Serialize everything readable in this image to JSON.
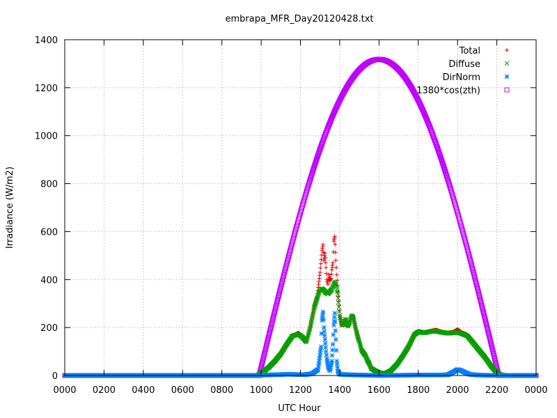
{
  "chart_data": {
    "type": "scatter",
    "title": "embrapa_MFR_Day20120428.txt",
    "xlabel": "UTC Hour",
    "ylabel": "Irradiance (W/m2)",
    "xlim": [
      0,
      24
    ],
    "ylim": [
      0,
      1400
    ],
    "x_ticks": [
      {
        "value": 0,
        "label": "0000"
      },
      {
        "value": 2,
        "label": "0200"
      },
      {
        "value": 4,
        "label": "0400"
      },
      {
        "value": 6,
        "label": "0600"
      },
      {
        "value": 8,
        "label": "0800"
      },
      {
        "value": 10,
        "label": "1000"
      },
      {
        "value": 12,
        "label": "1200"
      },
      {
        "value": 14,
        "label": "1400"
      },
      {
        "value": 16,
        "label": "1600"
      },
      {
        "value": 18,
        "label": "1800"
      },
      {
        "value": 20,
        "label": "2000"
      },
      {
        "value": 22,
        "label": "2200"
      },
      {
        "value": 24,
        "label": "0000"
      }
    ],
    "y_ticks": [
      {
        "value": 0,
        "label": "0"
      },
      {
        "value": 200,
        "label": "200"
      },
      {
        "value": 400,
        "label": "400"
      },
      {
        "value": 600,
        "label": "600"
      },
      {
        "value": 800,
        "label": "800"
      },
      {
        "value": 1000,
        "label": "1000"
      },
      {
        "value": 1200,
        "label": "1200"
      },
      {
        "value": 1400,
        "label": "1400"
      }
    ],
    "grid": true,
    "legend_position": "top-right",
    "series": [
      {
        "name": "Total",
        "marker": "plus",
        "color": "#e00000",
        "points": [
          [
            0,
            0
          ],
          [
            5,
            0
          ],
          [
            9.8,
            0
          ],
          [
            10.1,
            15
          ],
          [
            10.4,
            35
          ],
          [
            10.7,
            60
          ],
          [
            11.0,
            90
          ],
          [
            11.3,
            130
          ],
          [
            11.6,
            165
          ],
          [
            11.9,
            178
          ],
          [
            12.1,
            160
          ],
          [
            12.3,
            140
          ],
          [
            12.5,
            200
          ],
          [
            12.7,
            290
          ],
          [
            12.85,
            330
          ],
          [
            13.0,
            430
          ],
          [
            13.1,
            520
          ],
          [
            13.15,
            545
          ],
          [
            13.2,
            480
          ],
          [
            13.25,
            510
          ],
          [
            13.3,
            450
          ],
          [
            13.35,
            400
          ],
          [
            13.4,
            380
          ],
          [
            13.45,
            420
          ],
          [
            13.5,
            395
          ],
          [
            13.55,
            405
          ],
          [
            13.6,
            440
          ],
          [
            13.65,
            470
          ],
          [
            13.7,
            560
          ],
          [
            13.75,
            580
          ],
          [
            13.8,
            480
          ],
          [
            13.85,
            420
          ],
          [
            13.9,
            350
          ],
          [
            14.0,
            250
          ],
          [
            14.1,
            210
          ],
          [
            14.2,
            215
          ],
          [
            14.3,
            235
          ],
          [
            14.4,
            205
          ],
          [
            14.5,
            220
          ],
          [
            14.6,
            250
          ],
          [
            14.7,
            240
          ],
          [
            14.8,
            200
          ],
          [
            14.9,
            170
          ],
          [
            15.0,
            140
          ],
          [
            15.1,
            110
          ],
          [
            15.2,
            95
          ],
          [
            15.3,
            85
          ],
          [
            15.4,
            65
          ],
          [
            15.5,
            50
          ],
          [
            15.6,
            30
          ],
          [
            15.8,
            20
          ],
          [
            16.0,
            12
          ],
          [
            16.3,
            8
          ],
          [
            16.6,
            20
          ],
          [
            16.9,
            45
          ],
          [
            17.2,
            80
          ],
          [
            17.5,
            120
          ],
          [
            17.8,
            170
          ],
          [
            18.0,
            185
          ],
          [
            18.3,
            180
          ],
          [
            18.6,
            185
          ],
          [
            18.9,
            190
          ],
          [
            19.2,
            182
          ],
          [
            19.5,
            178
          ],
          [
            19.8,
            182
          ],
          [
            20.0,
            192
          ],
          [
            20.2,
            180
          ],
          [
            20.5,
            170
          ],
          [
            20.8,
            140
          ],
          [
            21.1,
            110
          ],
          [
            21.4,
            80
          ],
          [
            21.7,
            45
          ],
          [
            22.0,
            15
          ],
          [
            22.2,
            3
          ],
          [
            22.5,
            0
          ],
          [
            24,
            0
          ]
        ]
      },
      {
        "name": "Diffuse",
        "marker": "cross",
        "color": "#00a000",
        "points": [
          [
            0,
            0
          ],
          [
            5,
            0
          ],
          [
            9.8,
            0
          ],
          [
            10.1,
            15
          ],
          [
            10.4,
            35
          ],
          [
            10.7,
            60
          ],
          [
            11.0,
            90
          ],
          [
            11.3,
            130
          ],
          [
            11.6,
            165
          ],
          [
            11.9,
            172
          ],
          [
            12.1,
            160
          ],
          [
            12.3,
            140
          ],
          [
            12.5,
            200
          ],
          [
            12.7,
            280
          ],
          [
            12.85,
            320
          ],
          [
            13.0,
            360
          ],
          [
            13.1,
            362
          ],
          [
            13.2,
            355
          ],
          [
            13.3,
            345
          ],
          [
            13.4,
            340
          ],
          [
            13.5,
            350
          ],
          [
            13.6,
            360
          ],
          [
            13.7,
            380
          ],
          [
            13.8,
            390
          ],
          [
            13.9,
            340
          ],
          [
            14.0,
            250
          ],
          [
            14.1,
            210
          ],
          [
            14.2,
            215
          ],
          [
            14.3,
            235
          ],
          [
            14.4,
            205
          ],
          [
            14.5,
            220
          ],
          [
            14.6,
            250
          ],
          [
            14.7,
            240
          ],
          [
            14.8,
            200
          ],
          [
            14.9,
            165
          ],
          [
            15.0,
            140
          ],
          [
            15.1,
            108
          ],
          [
            15.2,
            95
          ],
          [
            15.3,
            85
          ],
          [
            15.4,
            65
          ],
          [
            15.5,
            50
          ],
          [
            15.6,
            30
          ],
          [
            15.8,
            20
          ],
          [
            16.0,
            12
          ],
          [
            16.3,
            8
          ],
          [
            16.6,
            20
          ],
          [
            16.9,
            45
          ],
          [
            17.2,
            80
          ],
          [
            17.5,
            120
          ],
          [
            17.8,
            170
          ],
          [
            18.0,
            182
          ],
          [
            18.3,
            178
          ],
          [
            18.6,
            183
          ],
          [
            18.9,
            185
          ],
          [
            19.2,
            180
          ],
          [
            19.5,
            176
          ],
          [
            19.8,
            178
          ],
          [
            20.0,
            180
          ],
          [
            20.2,
            175
          ],
          [
            20.5,
            165
          ],
          [
            20.8,
            135
          ],
          [
            21.1,
            105
          ],
          [
            21.4,
            75
          ],
          [
            21.7,
            40
          ],
          [
            22.0,
            12
          ],
          [
            22.2,
            3
          ],
          [
            22.5,
            0
          ],
          [
            24,
            0
          ]
        ]
      },
      {
        "name": "DirNorm",
        "marker": "star",
        "color": "#0080ff",
        "points": [
          [
            0,
            0
          ],
          [
            9.8,
            0
          ],
          [
            10.2,
            2
          ],
          [
            10.6,
            3
          ],
          [
            11.0,
            4
          ],
          [
            11.4,
            5
          ],
          [
            11.8,
            4
          ],
          [
            12.2,
            3
          ],
          [
            12.6,
            8
          ],
          [
            12.9,
            25
          ],
          [
            13.05,
            120
          ],
          [
            13.1,
            230
          ],
          [
            13.15,
            265
          ],
          [
            13.2,
            200
          ],
          [
            13.25,
            150
          ],
          [
            13.3,
            100
          ],
          [
            13.35,
            70
          ],
          [
            13.4,
            40
          ],
          [
            13.5,
            20
          ],
          [
            13.6,
            60
          ],
          [
            13.65,
            130
          ],
          [
            13.7,
            210
          ],
          [
            13.75,
            260
          ],
          [
            13.8,
            150
          ],
          [
            13.85,
            60
          ],
          [
            13.9,
            20
          ],
          [
            14.0,
            5
          ],
          [
            14.5,
            3
          ],
          [
            15.0,
            2
          ],
          [
            16.0,
            0
          ],
          [
            17.0,
            1
          ],
          [
            18.0,
            2
          ],
          [
            19.0,
            2
          ],
          [
            19.5,
            3
          ],
          [
            19.8,
            15
          ],
          [
            20.0,
            25
          ],
          [
            20.2,
            20
          ],
          [
            20.4,
            12
          ],
          [
            20.6,
            5
          ],
          [
            21.0,
            2
          ],
          [
            22.0,
            0
          ],
          [
            24,
            0
          ]
        ]
      },
      {
        "name": "1380*cos(zth)",
        "marker": "square",
        "color": "#c000ff",
        "peak": 1318,
        "rise_hour": 9.9,
        "peak_hour": 16.0,
        "set_hour": 22.1
      }
    ]
  }
}
